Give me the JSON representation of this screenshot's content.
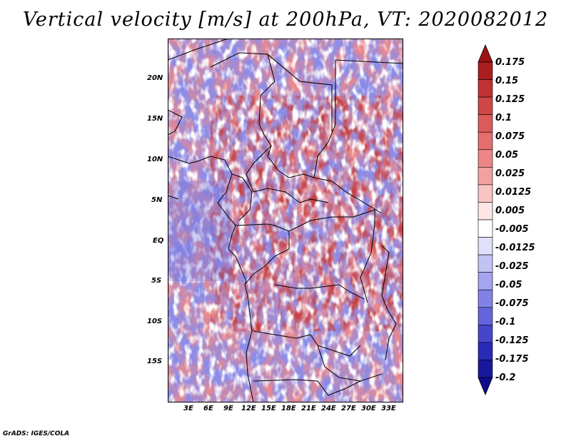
{
  "title": "Vertical velocity [m/s] at 200hPa, VT: 2020082012",
  "footer": "GrADS: IGES/COLA",
  "latitude_labels": [
    "20N",
    "15N",
    "10N",
    "5N",
    "EQ",
    "5S",
    "10S",
    "15S"
  ],
  "longitude_labels": [
    "3E",
    "6E",
    "9E",
    "12E",
    "15E",
    "18E",
    "21E",
    "24E",
    "27E",
    "30E",
    "33E"
  ],
  "colorbar": {
    "labels": [
      "0.175",
      "0.15",
      "0.125",
      "0.1",
      "0.075",
      "0.05",
      "0.025",
      "0.0125",
      "0.005",
      "-0.005",
      "-0.0125",
      "-0.025",
      "-0.05",
      "-0.075",
      "-0.1",
      "-0.125",
      "-0.175",
      "-0.2"
    ],
    "colors": [
      "#aa1e1e",
      "#c13232",
      "#cf4646",
      "#dc5a5a",
      "#e46e6e",
      "#ec8686",
      "#f3a0a0",
      "#f8c4c4",
      "#fce6e6",
      "#ffffff",
      "#e0e0fa",
      "#c2c2f5",
      "#a4a4f0",
      "#8282e6",
      "#6464dc",
      "#4646cd",
      "#2a2ab8",
      "#18189a"
    ],
    "top_color": "#9e1414",
    "bottom_color": "#100c8c"
  },
  "map": {
    "lon_range": [
      0,
      35
    ],
    "lat_range": [
      -20,
      25
    ],
    "units": "m/s",
    "level": "200hPa",
    "valid_time": "2020082012"
  }
}
